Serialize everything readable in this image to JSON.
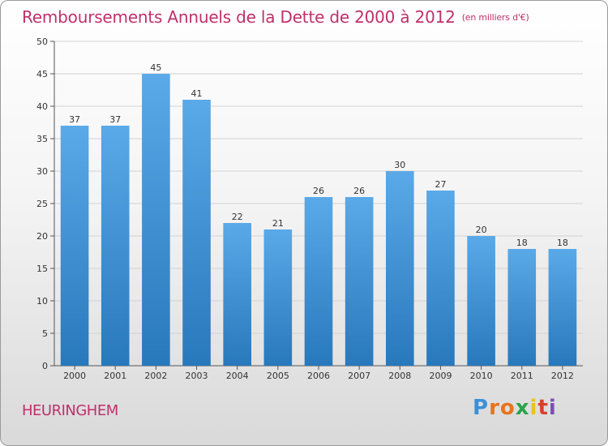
{
  "chart_data": {
    "type": "bar",
    "title": "Remboursements Annuels de la Dette de 2000 à 2012",
    "subtitle": "(en milliers d'€)",
    "categories": [
      "2000",
      "2001",
      "2002",
      "2003",
      "2004",
      "2005",
      "2006",
      "2007",
      "2008",
      "2009",
      "2010",
      "2011",
      "2012"
    ],
    "values": [
      37,
      37,
      45,
      41,
      22,
      21,
      26,
      26,
      30,
      27,
      20,
      18,
      18
    ],
    "ylim": [
      0,
      50
    ],
    "yticks": [
      0,
      5,
      10,
      15,
      20,
      25,
      30,
      35,
      40,
      45,
      50
    ],
    "xlabel": "",
    "ylabel": "",
    "grid": true,
    "bar_color_top": "#5aa9e8",
    "bar_color_bottom": "#2878bc"
  },
  "footer": {
    "commune": "HEURINGHEM",
    "logo_letters": [
      "P",
      "r",
      "o",
      "x",
      "i",
      "t",
      "i"
    ],
    "logo_colors": [
      "#3d8fd6",
      "#e8731f",
      "#e8731f",
      "#2aa34a",
      "#e8c21f",
      "#d8402f",
      "#7a4fb8"
    ]
  }
}
